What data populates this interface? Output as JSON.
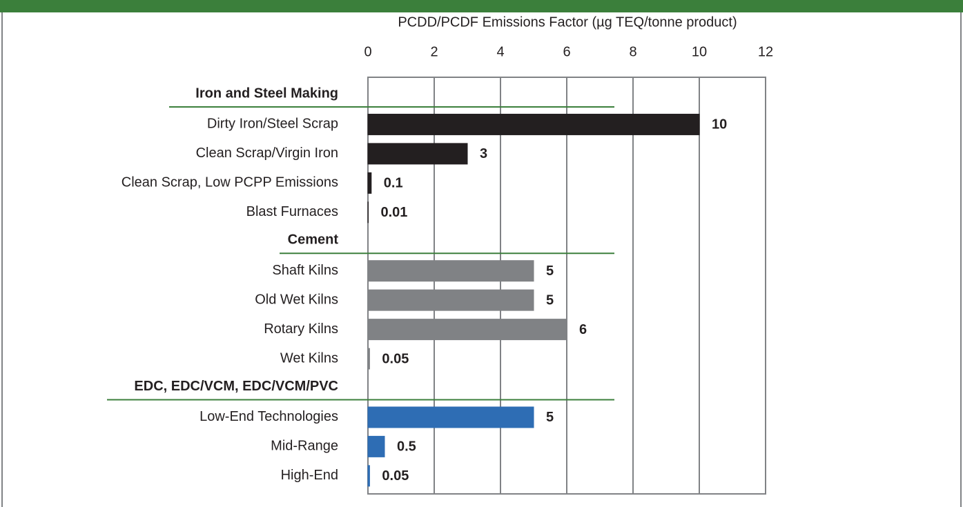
{
  "chart_data": {
    "type": "bar",
    "x_label": "PCDD/PCDF Emissions Factor (µg TEQ/tonne product)",
    "xlim": [
      0,
      12
    ],
    "xticks": [
      0,
      2,
      4,
      6,
      8,
      10,
      12
    ],
    "grid": true,
    "groups": [
      {
        "name": "Iron and Steel Making",
        "color": "#231f20",
        "categories": [
          "Dirty Iron/Steel Scrap",
          "Clean Scrap/Virgin Iron",
          "Clean Scrap, Low PCPP Emissions",
          "Blast Furnaces"
        ],
        "values": [
          10,
          3,
          0.1,
          0.01
        ]
      },
      {
        "name": "Cement",
        "color": "#808285",
        "categories": [
          "Shaft Kilns",
          "Old Wet Kilns",
          "Rotary Kilns",
          "Wet Kilns"
        ],
        "values": [
          5,
          5,
          6,
          0.05
        ]
      },
      {
        "name": "EDC, EDC/VCM, EDC/VCM/PVC",
        "color": "#2e6db4",
        "categories": [
          "Low-End Technologies",
          "Mid-Range",
          "High-End"
        ],
        "values": [
          5,
          0.5,
          0.05
        ]
      }
    ]
  }
}
